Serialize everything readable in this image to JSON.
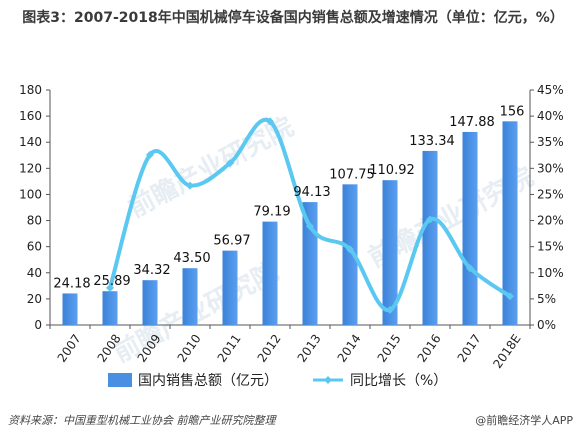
{
  "header": {
    "title": "图表3：2007-2018年中国机械停车设备国内销售总额及增速情况（单位：亿元，%）"
  },
  "watermark": "前瞻产业研究院",
  "footer": {
    "source": "资料来源：中国重型机械工业协会 前瞻产业研究院整理",
    "brand": "@前瞻经济学人APP"
  },
  "chart_data": {
    "type": "bar",
    "categories": [
      "2007",
      "2008",
      "2009",
      "2010",
      "2011",
      "2012",
      "2013",
      "2014",
      "2015",
      "2016",
      "2017",
      "2018E"
    ],
    "series": [
      {
        "name": "国内销售总额（亿元）",
        "type": "bar",
        "axis": "left",
        "values": [
          24.18,
          25.89,
          34.32,
          43.5,
          56.97,
          79.19,
          94.13,
          107.75,
          110.92,
          133.34,
          147.88,
          156
        ],
        "labels": [
          "24.18",
          "25.89",
          "34.32",
          "43.50",
          "56.97",
          "79.19",
          "94.13",
          "107.75",
          "110.92",
          "133.34",
          "147.88",
          "156"
        ],
        "color": "#4a90e2"
      },
      {
        "name": "同比增长（%）",
        "type": "line",
        "axis": "right",
        "values": [
          null,
          7.1,
          32.6,
          26.7,
          31.0,
          39.0,
          18.9,
          14.5,
          2.9,
          20.2,
          10.9,
          5.5
        ],
        "color": "#5bc8f2"
      }
    ],
    "yleft": {
      "min": 0,
      "max": 180,
      "ticks": [
        "0",
        "20",
        "40",
        "60",
        "80",
        "100",
        "120",
        "140",
        "160",
        "180"
      ]
    },
    "yright": {
      "min": 0,
      "max": 45,
      "ticks": [
        "0%",
        "5%",
        "10%",
        "15%",
        "20%",
        "25%",
        "30%",
        "35%",
        "40%",
        "45%"
      ]
    },
    "grid": false,
    "legend": "bottom"
  }
}
